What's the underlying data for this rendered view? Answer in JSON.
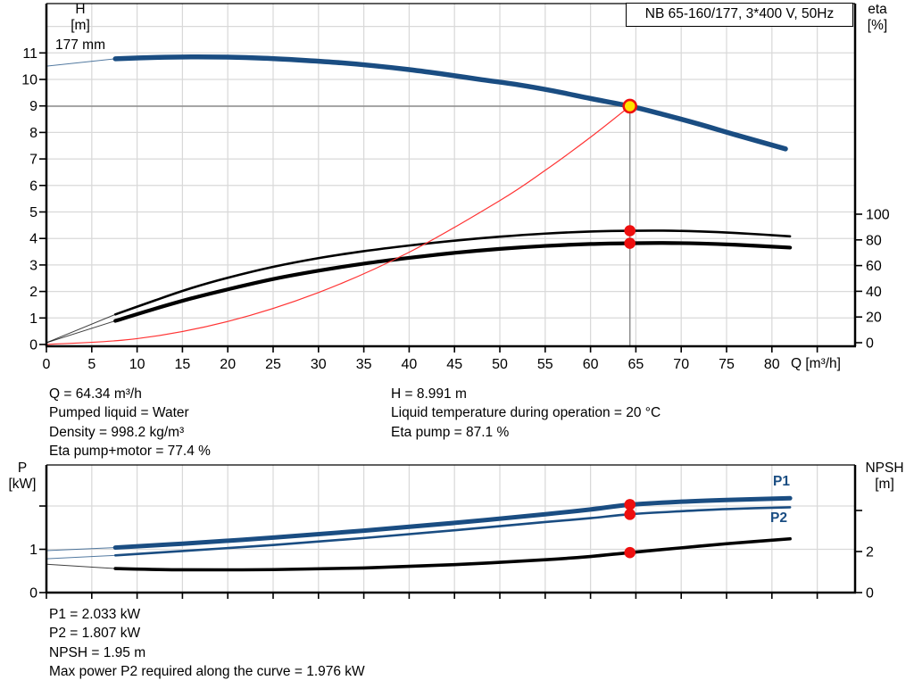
{
  "title_box": "NB 65-160/177, 3*400 V, 50Hz",
  "labels": {
    "h": "H",
    "m_unit": "[m]",
    "eta": "eta",
    "pct_unit": "[%]",
    "q_axis": "Q [m³/h]",
    "impeller": "177 mm",
    "p": "P",
    "kw_unit": "[kW]",
    "npsh": "NPSH",
    "m_unit2": "[m]",
    "p1": "P1",
    "p2": "P2"
  },
  "colors": {
    "curve_blue": "#1a4d82",
    "curve_black": "#000000",
    "dot_red": "#ee0f0f",
    "duty_yellow": "#ffe300",
    "system_red": "#ff3333",
    "duty_gray": "#8c8c8c",
    "grid": "#d9d9d9"
  },
  "readouts": {
    "top_left": [
      "Q = 64.34 m³/h",
      "Pumped liquid = Water",
      "Density = 998.2 kg/m³",
      "Eta pump+motor = 77.4 %"
    ],
    "top_right": [
      "H = 8.991 m",
      "Liquid temperature during operation = 20 °C",
      "Eta pump = 87.1 %"
    ],
    "bottom": [
      "P1 = 2.033 kW",
      "P2 = 1.807 kW",
      "NPSH = 1.95 m",
      "Max power P2 required along the curve = 1.976 kW"
    ]
  },
  "chart_data": [
    {
      "type": "line",
      "title": "NB 65-160/177, 3*400 V, 50Hz",
      "x_axis": {
        "label": "Q [m³/h]",
        "min": 0,
        "max": 89,
        "tick_step": 5,
        "last_labeled_tick": 80,
        "tick_labels": [
          "0",
          "5",
          "10",
          "15",
          "20",
          "25",
          "30",
          "35",
          "40",
          "45",
          "50",
          "55",
          "60",
          "65",
          "70",
          "75",
          "80"
        ]
      },
      "y_left": {
        "label": "H [m]",
        "min": 0,
        "max": 12.9,
        "ticks": [
          0,
          1,
          2,
          3,
          4,
          5,
          6,
          7,
          8,
          9,
          10,
          11
        ],
        "tick_labels": [
          "0",
          "1",
          "2",
          "3",
          "4",
          "5",
          "6",
          "7",
          "8",
          "9",
          "10",
          "11"
        ]
      },
      "y_right": {
        "label": "eta [%]",
        "min": 0,
        "max": 100,
        "ticks": [
          0,
          20,
          40,
          60,
          80,
          100
        ],
        "tick_labels": [
          "0",
          "20",
          "40",
          "60",
          "80",
          "100"
        ]
      },
      "series": [
        {
          "name": "head-curve-177mm",
          "quantity": "H",
          "color": "#1a4d82",
          "width": 5.5,
          "lead": [
            [
              0,
              10.5
            ],
            [
              7.6,
              10.78
            ]
          ],
          "points": [
            [
              7.6,
              10.78
            ],
            [
              12,
              10.83
            ],
            [
              16,
              10.85
            ],
            [
              20,
              10.84
            ],
            [
              24,
              10.8
            ],
            [
              28,
              10.73
            ],
            [
              32,
              10.64
            ],
            [
              36,
              10.52
            ],
            [
              40,
              10.37
            ],
            [
              44,
              10.19
            ],
            [
              48,
              9.99
            ],
            [
              52,
              9.8
            ],
            [
              56,
              9.56
            ],
            [
              60,
              9.28
            ],
            [
              64.34,
              8.99
            ],
            [
              68,
              8.68
            ],
            [
              72,
              8.31
            ],
            [
              76,
              7.91
            ],
            [
              81.5,
              7.38
            ]
          ]
        },
        {
          "name": "eta-pump-curve",
          "quantity": "eta",
          "color": "#000000",
          "width": 2.6,
          "lead": [
            [
              0,
              0
            ],
            [
              7.6,
              22
            ]
          ],
          "points": [
            [
              7.6,
              22
            ],
            [
              12,
              33
            ],
            [
              16,
              42.5
            ],
            [
              20,
              50.5
            ],
            [
              25,
              59
            ],
            [
              30,
              65.8
            ],
            [
              35,
              71.2
            ],
            [
              40,
              75.6
            ],
            [
              45,
              79.4
            ],
            [
              50,
              82.5
            ],
            [
              55,
              84.9
            ],
            [
              60,
              86.5
            ],
            [
              64.34,
              87.1
            ],
            [
              68,
              87.2
            ],
            [
              72,
              86.6
            ],
            [
              76,
              85.4
            ],
            [
              82,
              82.8
            ]
          ]
        },
        {
          "name": "eta-pump-motor-curve",
          "quantity": "eta",
          "color": "#000000",
          "width": 4.2,
          "lead": [
            [
              0,
              0
            ],
            [
              7.6,
              17
            ]
          ],
          "points": [
            [
              7.6,
              17
            ],
            [
              12,
              26.5
            ],
            [
              16,
              34.5
            ],
            [
              20,
              41.5
            ],
            [
              25,
              49.5
            ],
            [
              30,
              56
            ],
            [
              35,
              61.5
            ],
            [
              40,
              66
            ],
            [
              45,
              69.9
            ],
            [
              50,
              73
            ],
            [
              55,
              75.3
            ],
            [
              60,
              76.8
            ],
            [
              64.34,
              77.4
            ],
            [
              68,
              77.6
            ],
            [
              72,
              77.2
            ],
            [
              76,
              76.2
            ],
            [
              82,
              74
            ]
          ]
        },
        {
          "name": "system-curve",
          "quantity": "H",
          "color": "#ff3333",
          "width": 1.2,
          "lead": [],
          "points": [
            [
              0,
              0
            ],
            [
              10,
              0.22
            ],
            [
              20,
              0.87
            ],
            [
              30,
              1.96
            ],
            [
              40,
              3.48
            ],
            [
              50,
              5.43
            ],
            [
              55,
              6.57
            ],
            [
              60,
              7.82
            ],
            [
              64.34,
              8.991
            ]
          ]
        }
      ],
      "duty_lines": {
        "q": 64.34,
        "H": 8.991
      },
      "markers": [
        {
          "name": "duty-point",
          "style": "duty",
          "q": 64.34,
          "quantity": "H",
          "v": 8.991
        },
        {
          "name": "eta-pump-point",
          "style": "dot",
          "q": 64.34,
          "quantity": "eta",
          "v": 87.1
        },
        {
          "name": "eta-pump-motor-point",
          "style": "dot",
          "q": 64.34,
          "quantity": "eta",
          "v": 77.4
        }
      ],
      "duty_point": {
        "Q": 64.34,
        "H": 8.991,
        "eta_pump": 87.1,
        "eta_pump_motor": 77.4
      },
      "annotations": {
        "impeller_diameter": "177 mm"
      }
    },
    {
      "type": "line",
      "x_axis": {
        "label": "",
        "min": 0,
        "max": 89,
        "tick_step": 5,
        "last_labeled_tick": -1,
        "tick_labels": []
      },
      "y_left": {
        "label": "P [kW]",
        "min": 0,
        "max": 2.95,
        "ticks": [
          0,
          1,
          2
        ],
        "tick_labels": [
          "0",
          "1",
          ""
        ]
      },
      "y_right": {
        "label": "NPSH [m]",
        "min": 0,
        "max": 6.2,
        "ticks": [
          0,
          2,
          4
        ],
        "tick_labels": [
          "0",
          "2",
          ""
        ]
      },
      "series": [
        {
          "name": "p1-curve",
          "quantity": "P",
          "color": "#1a4d82",
          "width": 5,
          "lead": [
            [
              0,
              0.97
            ],
            [
              7.6,
              1.04
            ]
          ],
          "points": [
            [
              7.6,
              1.04
            ],
            [
              15,
              1.13
            ],
            [
              25,
              1.27
            ],
            [
              35,
              1.43
            ],
            [
              45,
              1.61
            ],
            [
              55,
              1.81
            ],
            [
              60,
              1.92
            ],
            [
              64.34,
              2.03
            ],
            [
              70,
              2.1
            ],
            [
              75,
              2.14
            ],
            [
              82,
              2.18
            ]
          ]
        },
        {
          "name": "p2-curve",
          "quantity": "P",
          "color": "#1a4d82",
          "width": 2.6,
          "lead": [
            [
              0,
              0.78
            ],
            [
              7.6,
              0.86
            ]
          ],
          "points": [
            [
              7.6,
              0.86
            ],
            [
              15,
              0.96
            ],
            [
              25,
              1.1
            ],
            [
              35,
              1.26
            ],
            [
              45,
              1.44
            ],
            [
              55,
              1.63
            ],
            [
              60,
              1.72
            ],
            [
              64.34,
              1.81
            ],
            [
              70,
              1.88
            ],
            [
              75,
              1.93
            ],
            [
              82,
              1.97
            ]
          ]
        },
        {
          "name": "npsh-curve",
          "quantity": "NPSH",
          "color": "#000000",
          "width": 3.6,
          "lead": [
            [
              0,
              1.38
            ],
            [
              7.6,
              1.17
            ]
          ],
          "points": [
            [
              7.6,
              1.17
            ],
            [
              15,
              1.11
            ],
            [
              25,
              1.12
            ],
            [
              35,
              1.2
            ],
            [
              45,
              1.36
            ],
            [
              55,
              1.6
            ],
            [
              60,
              1.76
            ],
            [
              64.34,
              1.95
            ],
            [
              70,
              2.18
            ],
            [
              75,
              2.38
            ],
            [
              82,
              2.62
            ]
          ]
        }
      ],
      "markers": [
        {
          "name": "p1-point",
          "style": "dot",
          "q": 64.34,
          "quantity": "P",
          "v": 2.033
        },
        {
          "name": "p2-point",
          "style": "dot",
          "q": 64.34,
          "quantity": "P",
          "v": 1.807
        },
        {
          "name": "npsh-point",
          "style": "dot",
          "q": 64.34,
          "quantity": "NPSH",
          "v": 1.95
        }
      ],
      "duty_point": {
        "Q": 64.34,
        "P1": 2.033,
        "P2": 1.807,
        "NPSH": 1.95
      }
    }
  ]
}
